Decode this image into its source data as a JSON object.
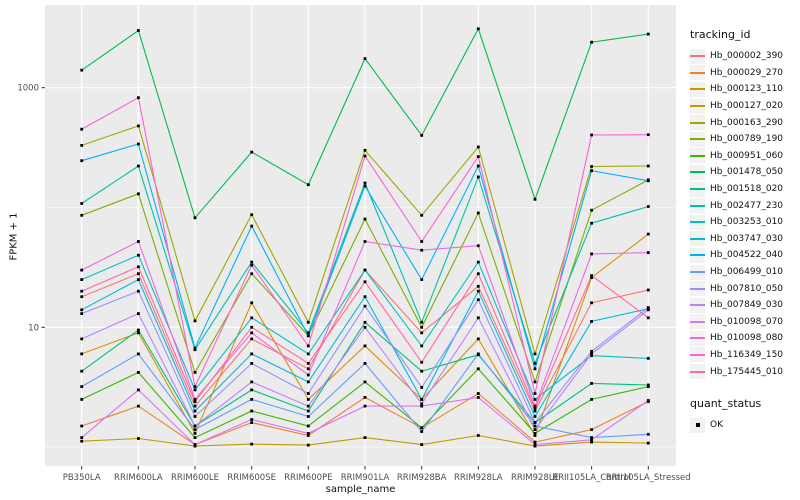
{
  "chart_data": {
    "type": "line",
    "title": "",
    "xlabel": "sample_name",
    "ylabel": "FPKM + 1",
    "y_scale": "log10",
    "y_ticks": [
      {
        "label": "1000",
        "value": 1000
      },
      {
        "label": "10",
        "value": 10
      }
    ],
    "y_minor_values": [
      100,
      1
    ],
    "x_categories": [
      "PB350LA",
      "RRIM600LA",
      "RRIM600LE",
      "RRIM600SE",
      "RRIM600PE",
      "RRIM901LA",
      "RRIM928BA",
      "RRIM928LA",
      "RRIM928LE",
      "RRII105LA_Control",
      "RRII105LA_Stressed"
    ],
    "legend_title": "tracking_id",
    "legend2_title": "quant_status",
    "legend2_items": [
      {
        "label": "OK",
        "shape": "square",
        "color": "#000000"
      }
    ],
    "point_shape": "square",
    "point_color": "#000000",
    "panel_bg": "#EBEBEB",
    "grid_color": "#FFFFFF",
    "key_bg": "#F2F2F2",
    "tick_label_color": "#4D4D4D",
    "series": [
      {
        "name": "Hb_000002_390",
        "color": "#F8766D",
        "values": [
          18,
          28,
          2.2,
          8,
          4.5,
          30,
          9,
          22,
          2.0,
          16,
          20.5
        ]
      },
      {
        "name": "Hb_000029_270",
        "color": "#EA8331",
        "values": [
          1.5,
          2.2,
          1.05,
          1.6,
          1.25,
          2.6,
          1.45,
          2.8,
          1.1,
          1.4,
          2.4
        ]
      },
      {
        "name": "Hb_000123_110",
        "color": "#D89000",
        "values": [
          6,
          9,
          1.3,
          16,
          2.5,
          7,
          2.5,
          8,
          1.25,
          26,
          60
        ]
      },
      {
        "name": "Hb_000127_020",
        "color": "#C09B00",
        "values": [
          1.12,
          1.18,
          1.02,
          1.06,
          1.04,
          1.2,
          1.05,
          1.25,
          1.02,
          1.1,
          1.08
        ]
      },
      {
        "name": "Hb_000163_290",
        "color": "#A3A500",
        "values": [
          330,
          480,
          11.3,
          87,
          11,
          300,
          86,
          320,
          6,
          220,
          222
        ]
      },
      {
        "name": "Hb_000789_190",
        "color": "#7CAE00",
        "values": [
          86,
          130,
          4.2,
          28,
          8.5,
          80,
          10,
          90,
          3.5,
          95,
          170
        ]
      },
      {
        "name": "Hb_000951_060",
        "color": "#39B600",
        "values": [
          2.5,
          4.2,
          1.2,
          2.0,
          1.5,
          3.5,
          1.45,
          4.5,
          1.3,
          2.5,
          3.2
        ]
      },
      {
        "name": "Hb_001478_050",
        "color": "#00BB4E",
        "values": [
          1400,
          3000,
          82,
          290,
          155,
          1750,
          400,
          3100,
          117,
          2400,
          2800
        ]
      },
      {
        "name": "Hb_001518_020",
        "color": "#00C07D",
        "values": [
          4.3,
          9.5,
          1.5,
          3.0,
          2.0,
          11,
          4.3,
          5.9,
          1.6,
          3.4,
          3.3
        ]
      },
      {
        "name": "Hb_002477_230",
        "color": "#00C1A7",
        "values": [
          108,
          222,
          6.5,
          35,
          9,
          160,
          11,
          180,
          5,
          74,
          102
        ]
      },
      {
        "name": "Hb_003253_010",
        "color": "#00BFC4",
        "values": [
          25,
          40,
          3,
          12,
          6,
          30,
          7,
          35,
          2.5,
          5.8,
          5.5
        ]
      },
      {
        "name": "Hb_003747_030",
        "color": "#00BADE",
        "values": [
          14,
          25,
          2,
          6,
          3.5,
          18,
          2.5,
          20,
          1.8,
          11.2,
          14.3
        ]
      },
      {
        "name": "Hb_004522_040",
        "color": "#00B0F6",
        "values": [
          246,
          339,
          6.7,
          70,
          8.5,
          151,
          25,
          222,
          4.5,
          203,
          167
        ]
      },
      {
        "name": "Hb_006499_010",
        "color": "#619CFF",
        "values": [
          3.2,
          6,
          1.4,
          2.5,
          1.8,
          5,
          1.35,
          6,
          1.5,
          1.2,
          1.28
        ]
      },
      {
        "name": "Hb_007810_050",
        "color": "#9590FF",
        "values": [
          13,
          20,
          1.8,
          5,
          2.8,
          15,
          3.15,
          17,
          1.6,
          6.3,
          14.6
        ]
      },
      {
        "name": "Hb_007849_030",
        "color": "#BC81FF",
        "values": [
          8,
          13,
          1.5,
          3.5,
          2.2,
          10,
          2.3,
          12,
          1.4,
          6.0,
          14
        ]
      },
      {
        "name": "Hb_010098_070",
        "color": "#DC71FA",
        "values": [
          1.2,
          3.0,
          1.05,
          1.7,
          1.3,
          2.2,
          2.2,
          2.6,
          1.05,
          1.15,
          2.45
        ]
      },
      {
        "name": "Hb_010098_080",
        "color": "#F166E8",
        "values": [
          30,
          52,
          2.5,
          9,
          4,
          52,
          44,
          48,
          2.2,
          41,
          42
        ]
      },
      {
        "name": "Hb_116349_150",
        "color": "#FD61D3",
        "values": [
          450,
          825,
          3.2,
          33,
          7,
          269,
          52,
          266,
          2.8,
          403,
          405
        ]
      },
      {
        "name": "Hb_175445_010",
        "color": "#FF67A4",
        "values": [
          20,
          32,
          2.4,
          10,
          5,
          24,
          5.1,
          28,
          2.1,
          27,
          12
        ]
      }
    ]
  }
}
